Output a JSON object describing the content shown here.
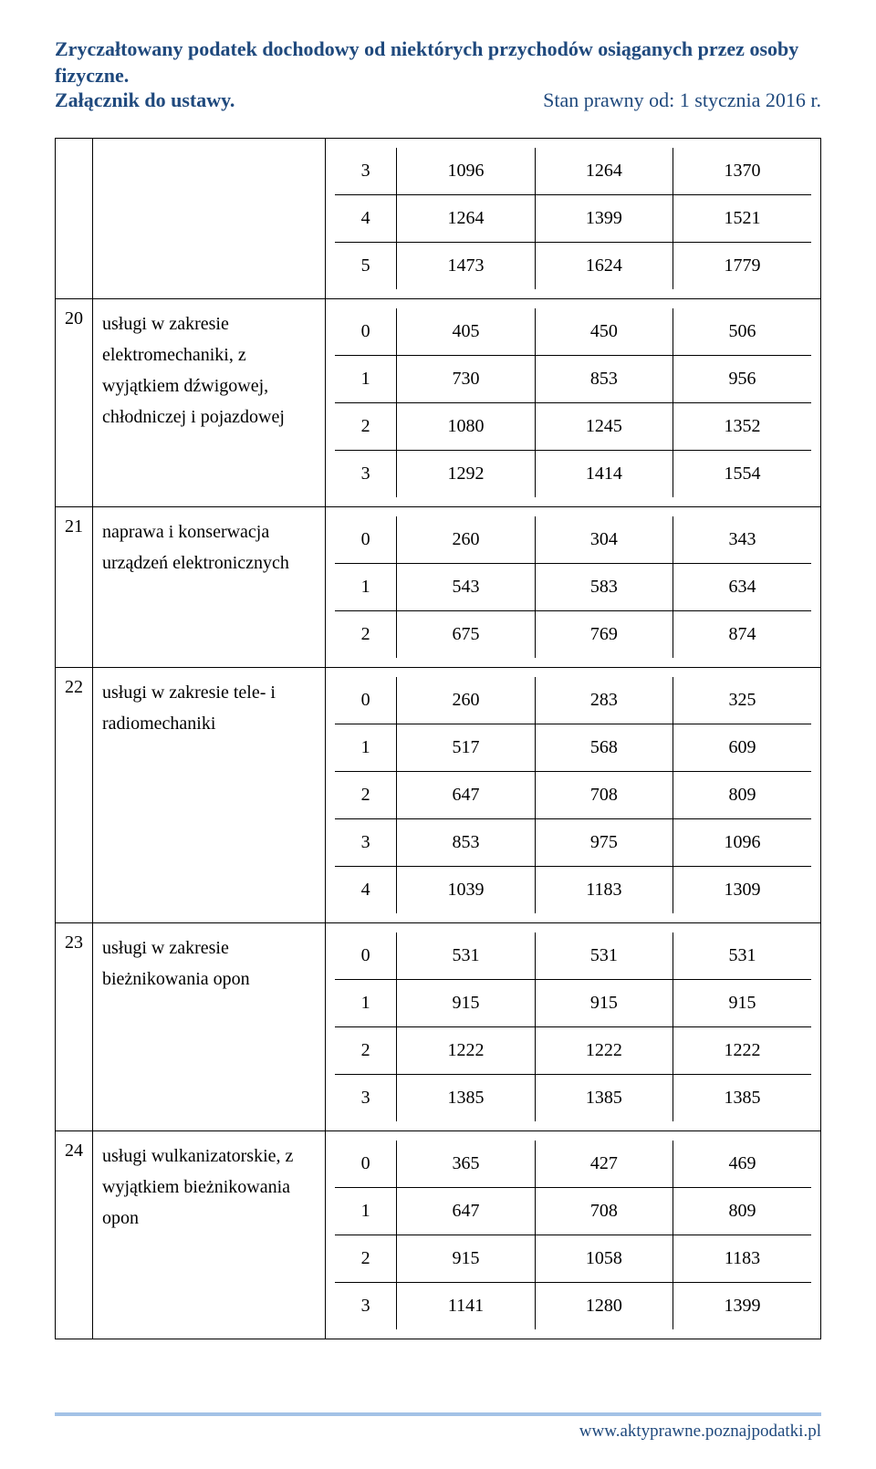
{
  "header": {
    "title": "Zryczałtowany podatek dochodowy od niektórych przychodów osiąganych przez osoby fizyczne.",
    "attachment": "Załącznik do ustawy.",
    "status": "Stan prawny od: 1 stycznia 2016 r."
  },
  "sections": [
    {
      "idx": "",
      "desc": "",
      "rows": [
        [
          "3",
          "1096",
          "1264",
          "1370"
        ],
        [
          "4",
          "1264",
          "1399",
          "1521"
        ],
        [
          "5",
          "1473",
          "1624",
          "1779"
        ]
      ]
    },
    {
      "idx": "20",
      "desc": "usługi w zakresie elektromechaniki, z wyjątkiem dźwigowej, chłodniczej i pojazdowej",
      "rows": [
        [
          "0",
          "405",
          "450",
          "506"
        ],
        [
          "1",
          "730",
          "853",
          "956"
        ],
        [
          "2",
          "1080",
          "1245",
          "1352"
        ],
        [
          "3",
          "1292",
          "1414",
          "1554"
        ]
      ]
    },
    {
      "idx": "21",
      "desc": "naprawa i konserwacja urządzeń elektronicznych",
      "rows": [
        [
          "0",
          "260",
          "304",
          "343"
        ],
        [
          "1",
          "543",
          "583",
          "634"
        ],
        [
          "2",
          "675",
          "769",
          "874"
        ]
      ]
    },
    {
      "idx": "22",
      "desc": "usługi w zakresie tele- i radiomechaniki",
      "rows": [
        [
          "0",
          "260",
          "283",
          "325"
        ],
        [
          "1",
          "517",
          "568",
          "609"
        ],
        [
          "2",
          "647",
          "708",
          "809"
        ],
        [
          "3",
          "853",
          "975",
          "1096"
        ],
        [
          "4",
          "1039",
          "1183",
          "1309"
        ]
      ]
    },
    {
      "idx": "23",
      "desc": "usługi w zakresie bieżnikowania opon",
      "rows": [
        [
          "0",
          "531",
          "531",
          "531"
        ],
        [
          "1",
          "915",
          "915",
          "915"
        ],
        [
          "2",
          "1222",
          "1222",
          "1222"
        ],
        [
          "3",
          "1385",
          "1385",
          "1385"
        ]
      ]
    },
    {
      "idx": "24",
      "desc": "usługi wulkanizatorskie, z wyjątkiem bieżnikowania opon",
      "rows": [
        [
          "0",
          "365",
          "427",
          "469"
        ],
        [
          "1",
          "647",
          "708",
          "809"
        ],
        [
          "2",
          "915",
          "1058",
          "1183"
        ],
        [
          "3",
          "1141",
          "1280",
          "1399"
        ]
      ]
    }
  ],
  "footer": {
    "url": "www.aktyprawne.poznajpodatki.pl"
  },
  "style": {
    "accent_color": "#1f497d",
    "footer_line_color": "#a3c2e6",
    "border_color": "#000000",
    "background": "#ffffff"
  }
}
